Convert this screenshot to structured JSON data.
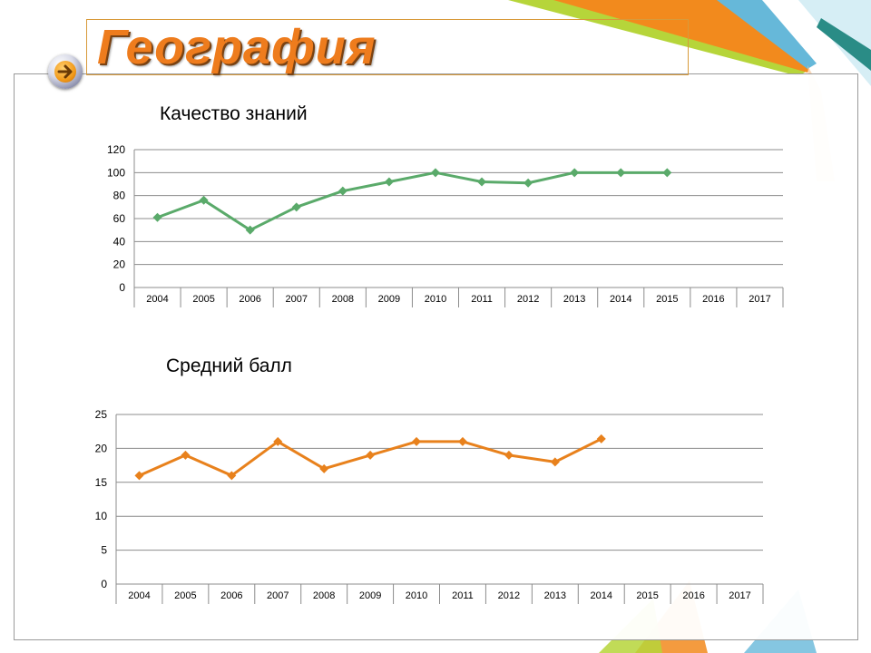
{
  "slide": {
    "title": "География"
  },
  "colors": {
    "green_series": "#5aaa6a",
    "orange_series": "#e8811c",
    "title_orange": "#ee7c1d"
  },
  "icons": {
    "nav": "arrow-right-icon"
  },
  "chart_data": [
    {
      "type": "line",
      "title": "Качество знаний",
      "xlabel": "",
      "ylabel": "",
      "categories": [
        "2004",
        "2005",
        "2006",
        "2007",
        "2008",
        "2009",
        "2010",
        "2011",
        "2012",
        "2013",
        "2014",
        "2015",
        "2016",
        "2017"
      ],
      "series": [
        {
          "values": [
            61,
            76,
            50,
            70,
            84,
            92,
            100,
            92,
            91,
            100,
            100,
            100,
            null,
            null
          ]
        }
      ],
      "ylim": [
        0,
        120
      ],
      "yticks": [
        0,
        20,
        40,
        60,
        80,
        100,
        120
      ],
      "grid": true,
      "legend": "none",
      "marker": "diamond"
    },
    {
      "type": "line",
      "title": "Средний балл",
      "xlabel": "",
      "ylabel": "",
      "categories": [
        "2004",
        "2005",
        "2006",
        "2007",
        "2008",
        "2009",
        "2010",
        "2011",
        "2012",
        "2013",
        "2014",
        "2015",
        "2016",
        "2017"
      ],
      "series": [
        {
          "values": [
            16,
            19,
            16,
            21,
            17,
            19,
            21,
            21,
            19,
            18,
            21.4,
            null,
            null,
            null
          ]
        }
      ],
      "ylim": [
        0,
        25
      ],
      "yticks": [
        0,
        5,
        10,
        15,
        20,
        25
      ],
      "grid": true,
      "legend": "none",
      "marker": "diamond"
    }
  ]
}
